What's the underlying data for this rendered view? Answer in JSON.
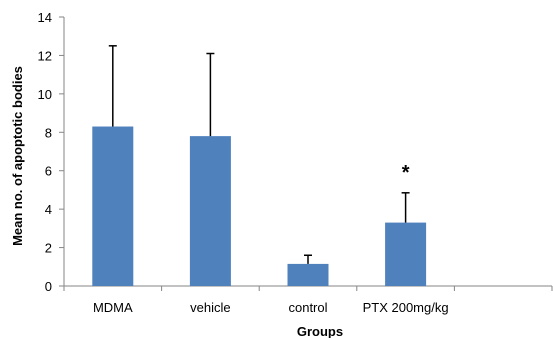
{
  "chart_data": {
    "type": "bar",
    "categories": [
      "MDMA",
      "vehicle",
      "control",
      "PTX 200mg/kg"
    ],
    "values": [
      8.3,
      7.8,
      1.15,
      3.3
    ],
    "error_upper": [
      4.2,
      4.3,
      0.45,
      1.55
    ],
    "annotations": [
      {
        "category": "PTX 200mg/kg",
        "text": "*"
      }
    ],
    "xlabel": "Groups",
    "ylabel": "Mean no. of apoptotic bodies",
    "ylim": [
      0,
      14
    ],
    "yticks": [
      0,
      2,
      4,
      6,
      8,
      10,
      12,
      14
    ],
    "grid": false,
    "legend": "none",
    "bar_color": "#4f81bd"
  }
}
